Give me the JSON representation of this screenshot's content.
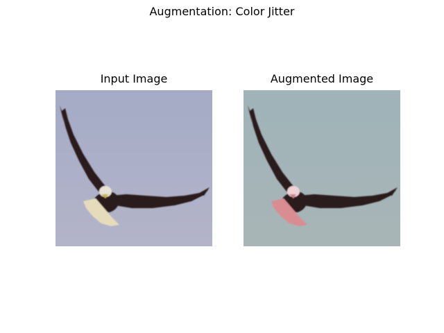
{
  "figure": {
    "title": "Augmentation: Color Jitter"
  },
  "panels": [
    {
      "title": "Input Image",
      "subject": "bald-eagle-in-flight",
      "colors": {
        "sky_top": "#a5abc6",
        "sky_bottom": "#b3b4c9",
        "wing": "#2a1d1c",
        "head": "#e8e3d6",
        "beak": "#c9b24a",
        "tail": "#e6dcbc"
      }
    },
    {
      "title": "Augmented Image",
      "subject": "bald-eagle-in-flight",
      "colors": {
        "sky_top": "#9fb3b8",
        "sky_bottom": "#a8b5b7",
        "wing": "#2b1b1e",
        "head": "#efd2d5",
        "beak": "#c98888",
        "tail": "#d98d92"
      }
    }
  ]
}
